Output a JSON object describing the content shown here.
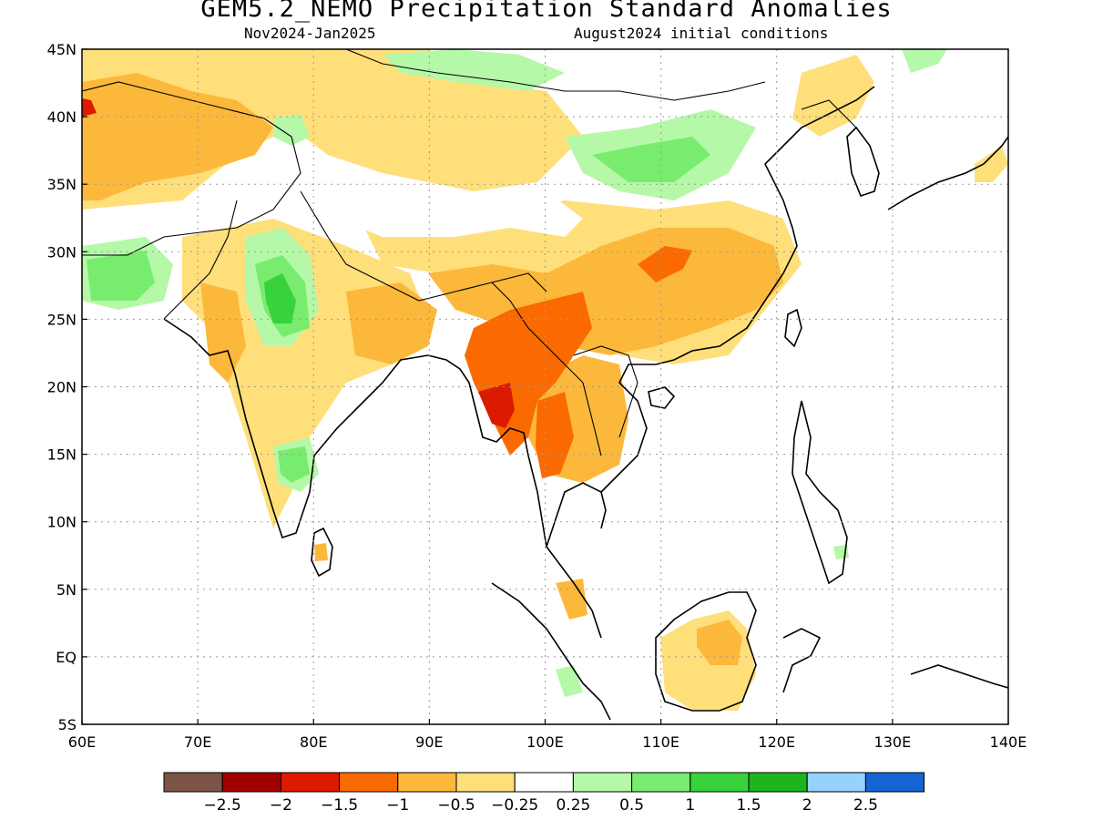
{
  "map": {
    "title": "GEM5.2_NEMO Precipitation Standard Anomalies",
    "period": "Nov2024-Jan2025",
    "init": "August2024 initial conditions",
    "lat_ticks": [
      "45N",
      "40N",
      "35N",
      "30N",
      "25N",
      "20N",
      "15N",
      "10N",
      "5N",
      "EQ",
      "5S"
    ],
    "lon_ticks": [
      "60E",
      "70E",
      "80E",
      "90E",
      "100E",
      "110E",
      "120E",
      "130E",
      "140E"
    ],
    "extent": {
      "lon": [
        60,
        140
      ],
      "lat": [
        -5,
        45
      ]
    }
  },
  "legend": {
    "labels": [
      "-2.5",
      "-2",
      "-1.5",
      "-1",
      "-0.5",
      "-0.25",
      "0.25",
      "0.5",
      "1",
      "1.5",
      "2",
      "2.5"
    ],
    "colors": [
      "#7b5446",
      "#a20000",
      "#dc1a00",
      "#fa6a00",
      "#fcb83b",
      "#fedf7a",
      "#ffffff",
      "#b4f8a8",
      "#78ec6e",
      "#37d23c",
      "#1eb41e",
      "#96d2fa",
      "#1464d2"
    ]
  },
  "colors": {
    "dry_light": "#fedf7a",
    "dry_med": "#fcb83b",
    "dry_strong": "#fa6a00",
    "dry_vstrong": "#dc1a00",
    "wet_light": "#b4f8a8",
    "wet_med": "#78ec6e",
    "wet_strong": "#37d23c"
  }
}
